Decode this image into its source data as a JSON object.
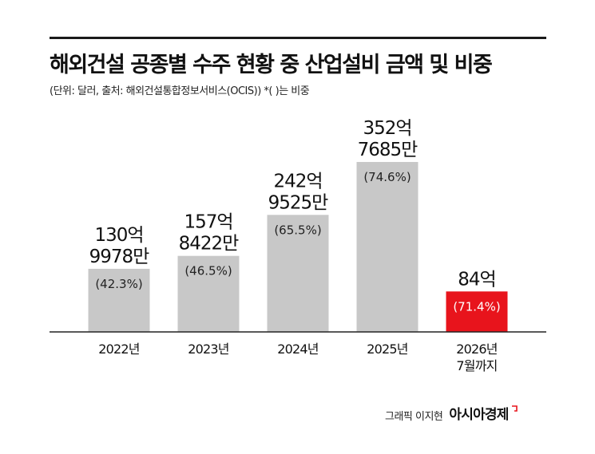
{
  "header": {
    "title": "해외건설 공종별 수주 현황 중 산업설비 금액 및 비중",
    "subtitle": "(단위: 달러, 출처: 해외건설통합정보서비스(OCIS))  *( )는 비중"
  },
  "chart_data": {
    "type": "bar",
    "categories": [
      [
        "2022년"
      ],
      [
        "2023년"
      ],
      [
        "2024년"
      ],
      [
        "2025년"
      ],
      [
        "2026년",
        "7월까지"
      ]
    ],
    "values": [
      13099780000,
      15784220000,
      24295250000,
      35276850000,
      8400000000
    ],
    "value_labels": [
      [
        "130억",
        "9978만"
      ],
      [
        "157억",
        "8422만"
      ],
      [
        "242억",
        "9525만"
      ],
      [
        "352억",
        "7685만"
      ],
      [
        "84억"
      ]
    ],
    "share_labels": [
      "(42.3%)",
      "(46.5%)",
      "(65.5%)",
      "(74.6%)",
      "(71.4%)"
    ],
    "bar_colors": [
      "#c8c8c8",
      "#c8c8c8",
      "#c8c8c8",
      "#c8c8c8",
      "#e8141c"
    ],
    "ylim": [
      0,
      35276850000
    ],
    "grid": false
  },
  "colors": {
    "highlight": "#e8141c",
    "bar": "#c8c8c8",
    "baseline": "#222222"
  },
  "credit": {
    "author": "그래픽 이지현",
    "brand": "아시아경제"
  }
}
